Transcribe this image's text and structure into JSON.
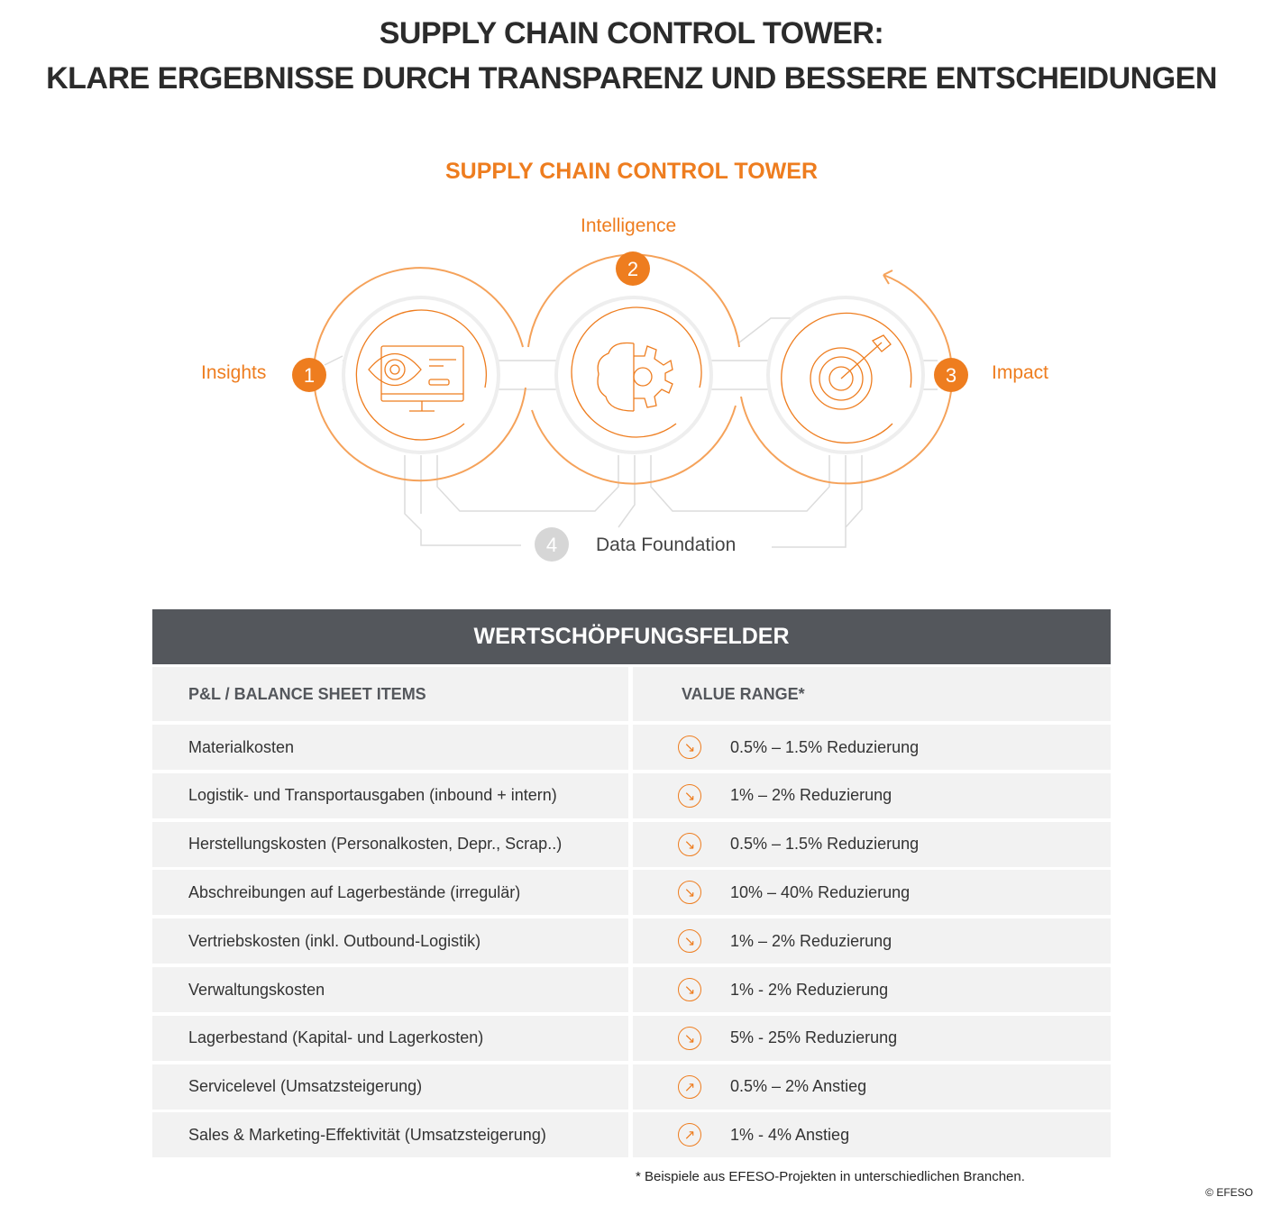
{
  "title_line1": "SUPPLY CHAIN CONTROL TOWER:",
  "title_line2": "KLARE ERGEBNISSE DURCH TRANSPARENZ UND BESSERE ENTSCHEIDUNGEN",
  "diagram": {
    "title": "SUPPLY CHAIN CONTROL TOWER",
    "steps": [
      {
        "number": "1",
        "label": "Insights",
        "icon": "eye-monitor-icon"
      },
      {
        "number": "2",
        "label": "Intelligence",
        "icon": "brain-gear-icon"
      },
      {
        "number": "3",
        "label": "Impact",
        "icon": "target-arrow-icon"
      },
      {
        "number": "4",
        "label": "Data Foundation"
      }
    ],
    "accent_color": "#ee7d1f",
    "muted_color": "#d0d0d0"
  },
  "table": {
    "title": "WERTSCHÖPFUNGSFELDER",
    "col1": "P&L / BALANCE SHEET ITEMS",
    "col2": "VALUE RANGE*",
    "header_color": "#54575c",
    "rows": [
      {
        "item": "Materialkosten",
        "range": "0.5% – 1.5% Reduzierung",
        "icon": "arrow-down-right-icon"
      },
      {
        "item": "Logistik- und Transportausgaben (inbound + intern)",
        "range": "1% – 2% Reduzierung",
        "icon": "arrow-down-right-icon"
      },
      {
        "item": "Herstellungskosten (Personalkosten, Depr., Scrap..)",
        "range": "0.5% – 1.5% Reduzierung",
        "icon": "arrow-down-right-icon"
      },
      {
        "item": "Abschreibungen auf Lagerbestände (irregulär)",
        "range": "10% – 40% Reduzierung",
        "icon": "arrow-down-right-icon"
      },
      {
        "item": "Vertriebskosten (inkl. Outbound-Logistik)",
        "range": "1% – 2% Reduzierung",
        "icon": "arrow-down-right-icon"
      },
      {
        "item": "Verwaltungskosten",
        "range": "1% - 2% Reduzierung",
        "icon": "arrow-down-right-icon"
      },
      {
        "item": "Lagerbestand (Kapital- und Lagerkosten)",
        "range": "5% - 25% Reduzierung",
        "icon": "arrow-down-right-icon"
      },
      {
        "item": "Servicelevel (Umsatzsteigerung)",
        "range": "0.5% – 2% Anstieg",
        "icon": "arrow-up-right-icon"
      },
      {
        "item": "Sales & Marketing-Effektivität (Umsatzsteigerung)",
        "range": "1% - 4% Anstieg",
        "icon": "arrow-up-right-icon"
      }
    ]
  },
  "footnote": "* Beispiele aus EFESO-Projekten in unterschiedlichen Branchen.",
  "copyright": "© EFESO"
}
